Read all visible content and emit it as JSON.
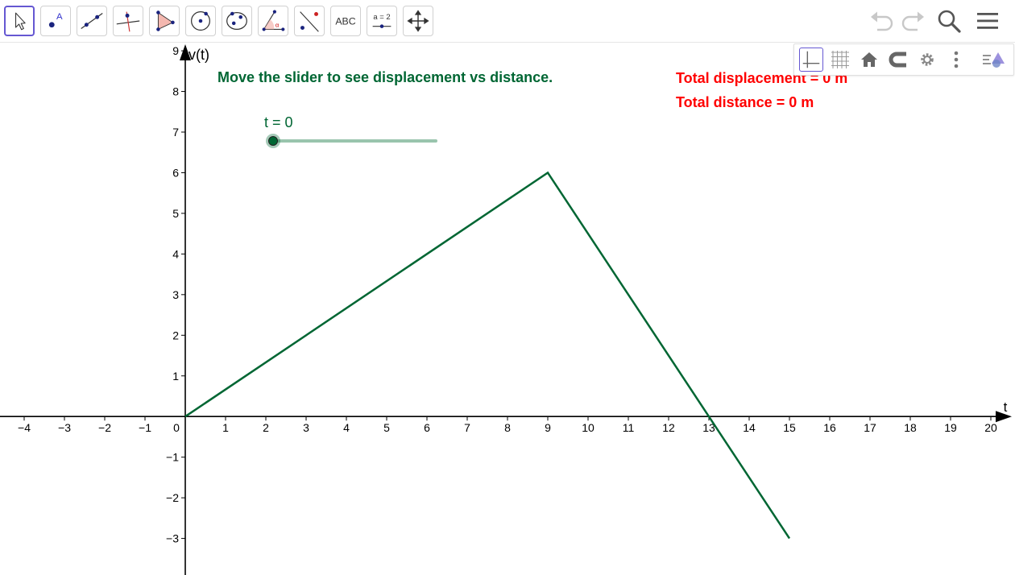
{
  "toolbar": {
    "tools": [
      {
        "name": "move-tool",
        "icon": "pointer-arrow-icon"
      },
      {
        "name": "point-tool",
        "icon": "point-icon",
        "glyph": "A"
      },
      {
        "name": "line-tool",
        "icon": "line-icon"
      },
      {
        "name": "perpendicular-line-tool",
        "icon": "perpendicular-line-icon"
      },
      {
        "name": "polygon-tool",
        "icon": "polygon-icon"
      },
      {
        "name": "circle-tool",
        "icon": "circle-center-point-icon"
      },
      {
        "name": "conic-tool",
        "icon": "ellipse-icon"
      },
      {
        "name": "angle-tool",
        "icon": "angle-icon"
      },
      {
        "name": "reflect-tool",
        "icon": "reflect-about-line-icon"
      },
      {
        "name": "text-tool",
        "icon": "text-icon",
        "label": "ABC"
      },
      {
        "name": "slider-tool",
        "icon": "slider-icon",
        "label": "a = 2"
      },
      {
        "name": "move-graphics-view-tool",
        "icon": "move-arrows-icon"
      }
    ],
    "right": [
      "undo-icon",
      "redo-icon",
      "search-icon",
      "menu-icon"
    ]
  },
  "style_bar": [
    "axes-icon",
    "grid-icon",
    "home-icon",
    "magnet-icon",
    "gear-icon",
    "more-vertical-icon",
    "style-bar-toggle-icon"
  ],
  "graph": {
    "instruction": "Move the slider to see displacement vs distance.",
    "slider_label": "t = 0",
    "slider_value": 0,
    "total_displacement": "Total displacement = 0 m",
    "total_distance": "Total distance = 0 m",
    "colors": {
      "green": "#006633",
      "red": "#ff0000",
      "slider_track": "#99c4ad"
    }
  },
  "chart_data": {
    "type": "line",
    "xlabel": "t",
    "ylabel": "v(t)",
    "xlim": [
      -4.6,
      20.6
    ],
    "ylim": [
      -3.9,
      9.2
    ],
    "x_ticks": [
      -4,
      -3,
      -2,
      -1,
      0,
      1,
      2,
      3,
      4,
      5,
      6,
      7,
      8,
      9,
      10,
      11,
      12,
      13,
      14,
      15,
      16,
      17,
      18,
      19,
      20
    ],
    "y_ticks": [
      -3,
      -2,
      -1,
      1,
      2,
      3,
      4,
      5,
      6,
      7,
      8,
      9
    ],
    "x_tick_labels": [
      "−4",
      "−3",
      "−2",
      "−1",
      "0",
      "1",
      "2",
      "3",
      "4",
      "5",
      "6",
      "7",
      "8",
      "9",
      "10",
      "11",
      "12",
      "13",
      "14",
      "15",
      "16",
      "17",
      "18",
      "19",
      "20"
    ],
    "y_tick_labels": [
      "−3",
      "−2",
      "−1",
      "1",
      "2",
      "3",
      "4",
      "5",
      "6",
      "7",
      "8",
      "9"
    ],
    "series": [
      {
        "x": [
          0,
          9,
          15
        ],
        "y": [
          0,
          6,
          -3
        ]
      }
    ]
  }
}
